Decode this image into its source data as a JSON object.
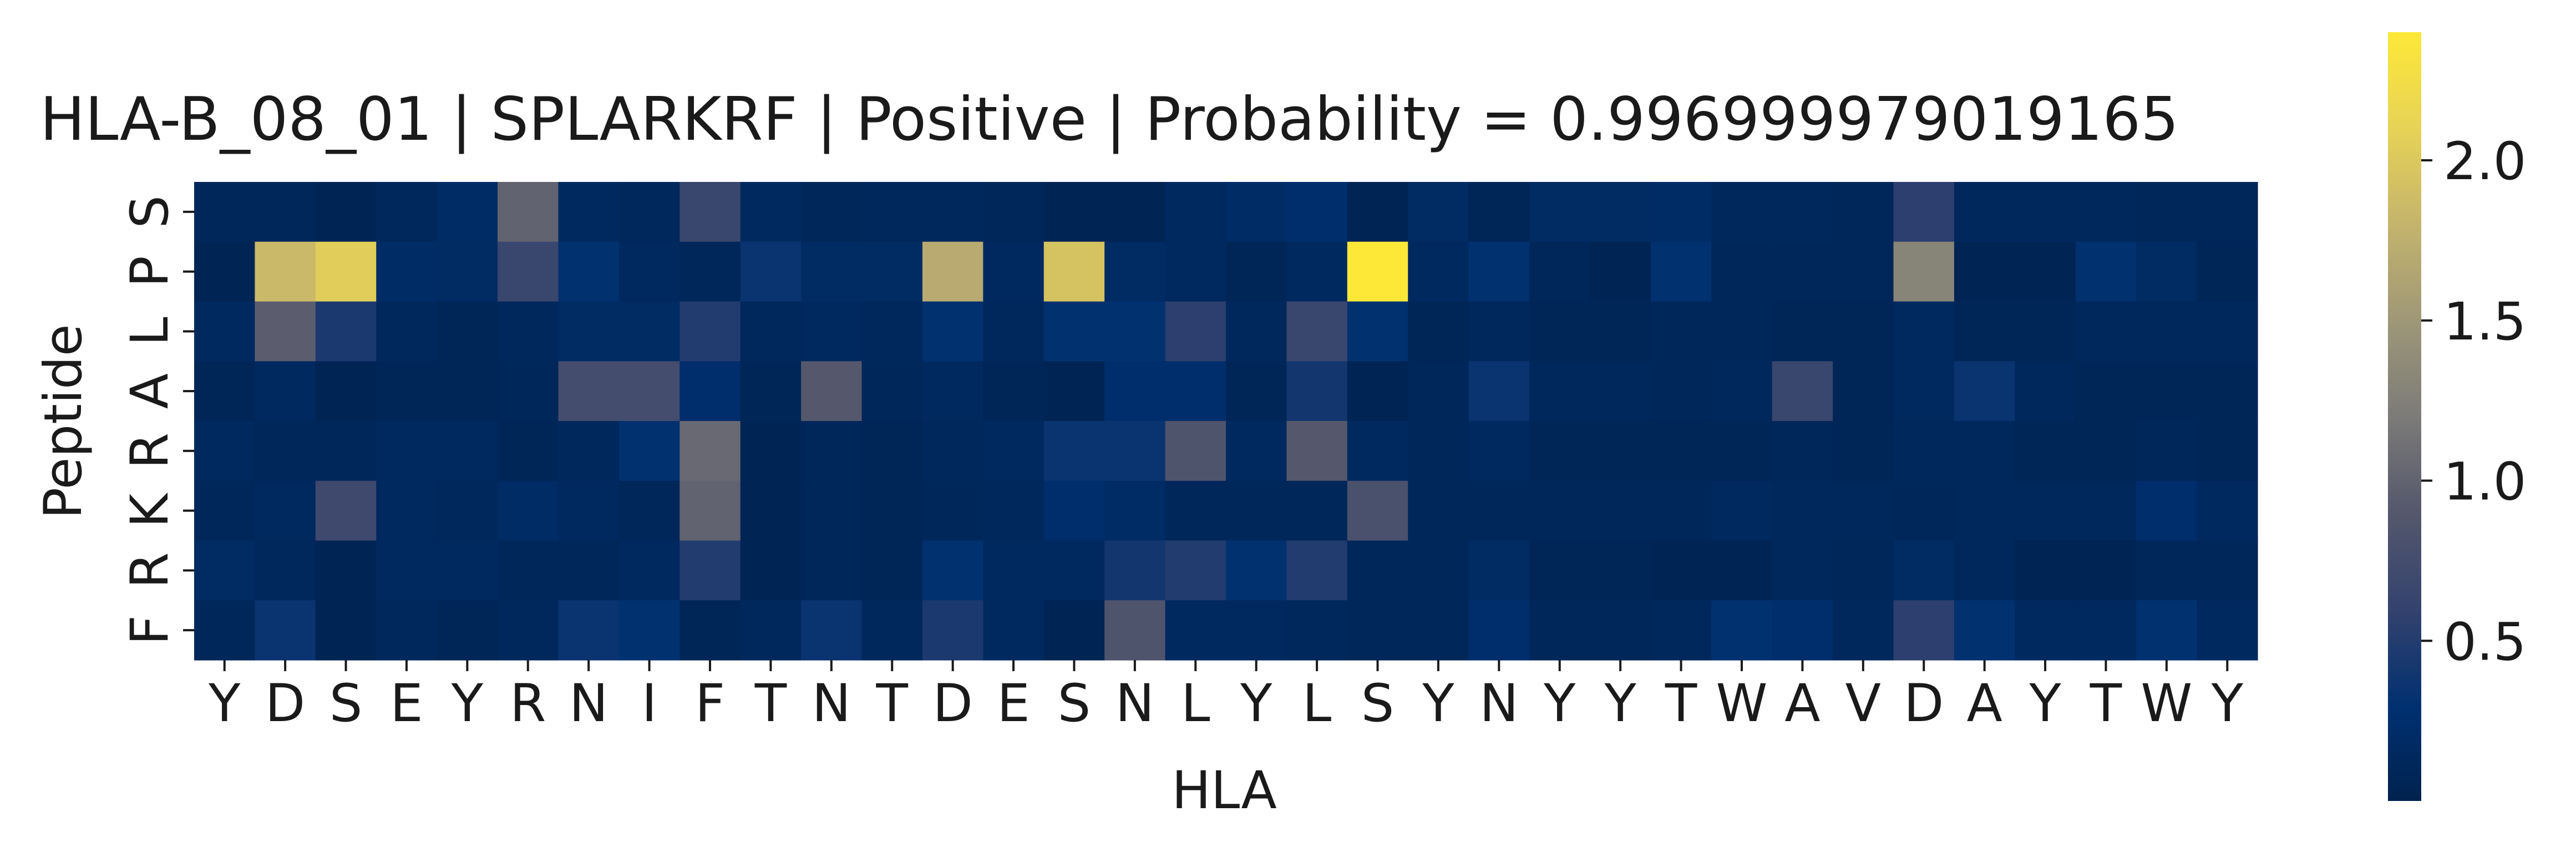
{
  "chart_data": {
    "type": "heatmap",
    "title": "HLA-B_08_01 | SPLARKRF | Positive | Probability = 0.996999979019165",
    "xlabel": "HLA",
    "ylabel": "Peptide",
    "x_ticklabels": [
      "Y",
      "D",
      "S",
      "E",
      "Y",
      "R",
      "N",
      "I",
      "F",
      "T",
      "N",
      "T",
      "D",
      "E",
      "S",
      "N",
      "L",
      "Y",
      "L",
      "S",
      "Y",
      "N",
      "Y",
      "Y",
      "T",
      "W",
      "A",
      "V",
      "D",
      "A",
      "Y",
      "T",
      "W",
      "Y"
    ],
    "y_ticklabels": [
      "S",
      "P",
      "L",
      "A",
      "R",
      "K",
      "R",
      "F"
    ],
    "colormap": "cividis",
    "colorbar": {
      "min": 0.0,
      "max": 2.4,
      "ticks": [
        0.5,
        1.0,
        1.5,
        2.0
      ],
      "tick_labels": [
        "0.5",
        "1.0",
        "1.5",
        "2.0"
      ]
    },
    "values": [
      [
        0.1,
        0.1,
        0.05,
        0.12,
        0.2,
        1.0,
        0.15,
        0.12,
        0.65,
        0.15,
        0.1,
        0.12,
        0.12,
        0.1,
        0.05,
        0.05,
        0.15,
        0.2,
        0.25,
        0.05,
        0.18,
        0.08,
        0.18,
        0.18,
        0.2,
        0.12,
        0.12,
        0.1,
        0.55,
        0.12,
        0.12,
        0.12,
        0.1,
        0.1
      ],
      [
        0.05,
        1.85,
        2.05,
        0.2,
        0.18,
        0.65,
        0.3,
        0.15,
        0.1,
        0.35,
        0.18,
        0.18,
        1.7,
        0.15,
        1.95,
        0.18,
        0.15,
        0.08,
        0.15,
        2.4,
        0.15,
        0.3,
        0.1,
        0.05,
        0.3,
        0.1,
        0.1,
        0.1,
        1.3,
        0.05,
        0.05,
        0.3,
        0.18,
        0.08
      ],
      [
        0.15,
        0.95,
        0.45,
        0.12,
        0.08,
        0.12,
        0.18,
        0.18,
        0.5,
        0.12,
        0.15,
        0.12,
        0.3,
        0.12,
        0.3,
        0.3,
        0.55,
        0.12,
        0.65,
        0.3,
        0.08,
        0.12,
        0.08,
        0.08,
        0.1,
        0.1,
        0.08,
        0.08,
        0.15,
        0.08,
        0.08,
        0.12,
        0.12,
        0.12
      ],
      [
        0.08,
        0.15,
        0.05,
        0.08,
        0.08,
        0.1,
        0.75,
        0.75,
        0.25,
        0.08,
        0.9,
        0.1,
        0.15,
        0.08,
        0.05,
        0.25,
        0.25,
        0.08,
        0.4,
        0.05,
        0.1,
        0.35,
        0.12,
        0.12,
        0.1,
        0.12,
        0.65,
        0.08,
        0.15,
        0.35,
        0.12,
        0.08,
        0.08,
        0.08
      ],
      [
        0.15,
        0.1,
        0.1,
        0.15,
        0.15,
        0.08,
        0.12,
        0.3,
        1.05,
        0.05,
        0.1,
        0.08,
        0.12,
        0.15,
        0.35,
        0.35,
        0.85,
        0.15,
        0.9,
        0.15,
        0.1,
        0.15,
        0.08,
        0.08,
        0.08,
        0.08,
        0.1,
        0.08,
        0.12,
        0.12,
        0.08,
        0.08,
        0.1,
        0.08
      ],
      [
        0.1,
        0.15,
        0.7,
        0.15,
        0.12,
        0.2,
        0.15,
        0.1,
        1.0,
        0.05,
        0.1,
        0.08,
        0.1,
        0.12,
        0.25,
        0.2,
        0.1,
        0.1,
        0.1,
        0.8,
        0.1,
        0.1,
        0.1,
        0.1,
        0.1,
        0.15,
        0.12,
        0.12,
        0.1,
        0.12,
        0.12,
        0.12,
        0.25,
        0.15
      ],
      [
        0.18,
        0.12,
        0.05,
        0.15,
        0.15,
        0.1,
        0.1,
        0.15,
        0.5,
        0.05,
        0.1,
        0.08,
        0.3,
        0.15,
        0.15,
        0.4,
        0.5,
        0.3,
        0.5,
        0.1,
        0.1,
        0.18,
        0.08,
        0.08,
        0.05,
        0.05,
        0.12,
        0.1,
        0.18,
        0.12,
        0.05,
        0.05,
        0.1,
        0.1
      ],
      [
        0.1,
        0.35,
        0.05,
        0.12,
        0.08,
        0.12,
        0.35,
        0.3,
        0.08,
        0.12,
        0.35,
        0.12,
        0.45,
        0.15,
        0.05,
        0.85,
        0.15,
        0.15,
        0.12,
        0.1,
        0.1,
        0.25,
        0.1,
        0.1,
        0.12,
        0.3,
        0.25,
        0.12,
        0.55,
        0.3,
        0.15,
        0.15,
        0.3,
        0.15
      ]
    ]
  }
}
